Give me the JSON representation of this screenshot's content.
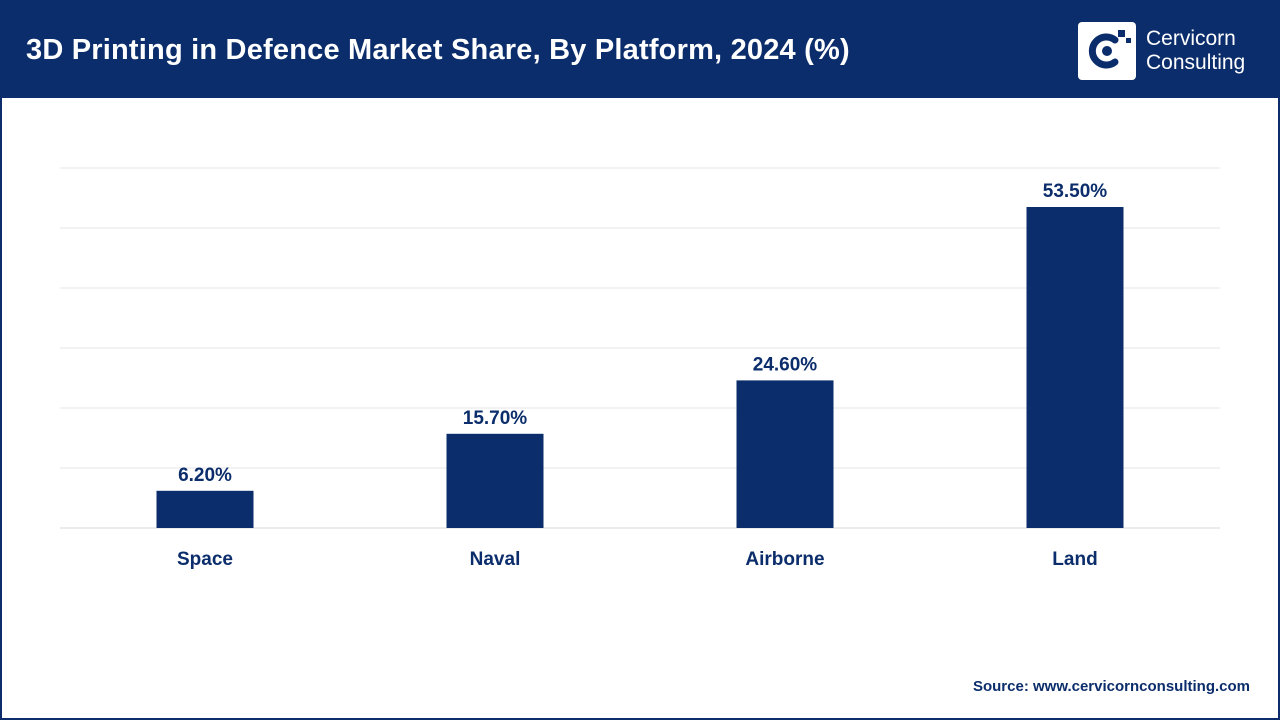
{
  "header": {
    "title": "3D Printing in Defence Market Share, By Platform, 2024 (%)",
    "logo": {
      "line1": "Cervicorn",
      "line2": "Consulting",
      "icon": "cervicorn-logo-icon"
    }
  },
  "source": {
    "label": "Source:",
    "url": "www.cervicornconsulting.com"
  },
  "colors": {
    "header_bg": "#0b2d6b",
    "bar": "#0b2d6b",
    "gridline": "#e6e6e6",
    "axis_text": "#0b2d6b"
  },
  "chart_data": {
    "type": "bar",
    "title": "3D Printing in Defence Market Share, By Platform, 2024 (%)",
    "categories": [
      "Space",
      "Naval",
      "Airborne",
      "Land"
    ],
    "values": [
      6.2,
      15.7,
      24.6,
      53.5
    ],
    "data_labels": [
      "6.20%",
      "15.70%",
      "24.60%",
      "53.50%"
    ],
    "unit": "%",
    "xlabel": "",
    "ylabel": "",
    "ylim": [
      0,
      60
    ],
    "gridlines": [
      10,
      20,
      30,
      40,
      50,
      60
    ],
    "grid": true,
    "legend": "none"
  }
}
